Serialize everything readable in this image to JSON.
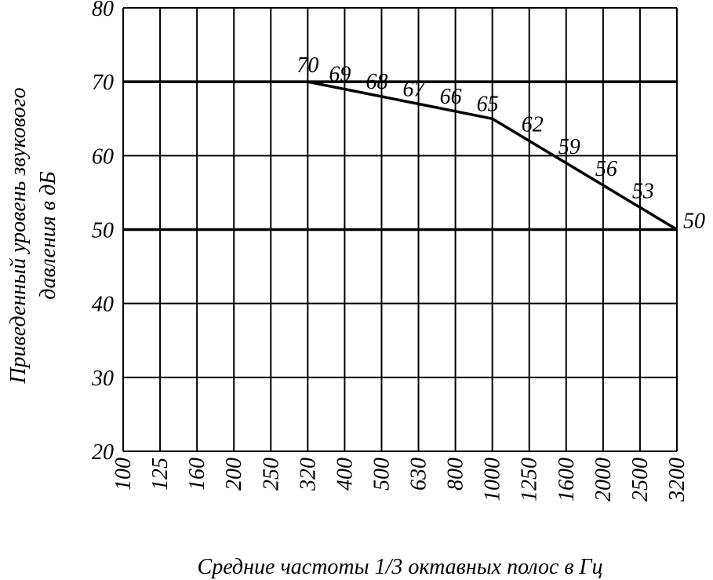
{
  "chart_data": {
    "type": "line",
    "title": "",
    "xlabel": "Средние частоты 1/3 октавных полос в Гц",
    "ylabel_line1": "Приведенный уровень звукового",
    "ylabel_line2": "давления в дБ",
    "categories": [
      "100",
      "125",
      "160",
      "200",
      "250",
      "320",
      "400",
      "500",
      "630",
      "800",
      "1000",
      "1250",
      "1600",
      "2000",
      "2500",
      "3200"
    ],
    "yticks": [
      "20",
      "30",
      "40",
      "50",
      "60",
      "70",
      "80"
    ],
    "ylim": [
      20,
      80
    ],
    "grid": true,
    "reference_lines": [
      50,
      70
    ],
    "series": [
      {
        "x": [
          "100",
          "320",
          "400",
          "500",
          "630",
          "800",
          "1000",
          "1250",
          "1600",
          "2000",
          "2500",
          "3200"
        ],
        "values": [
          70,
          70,
          69,
          68,
          67,
          66,
          65,
          62,
          59,
          56,
          53,
          50
        ],
        "labels": [
          "70",
          "69",
          "68",
          "67",
          "66",
          "65",
          "62",
          "59",
          "56",
          "53",
          "50"
        ]
      }
    ],
    "color": "#000000"
  }
}
